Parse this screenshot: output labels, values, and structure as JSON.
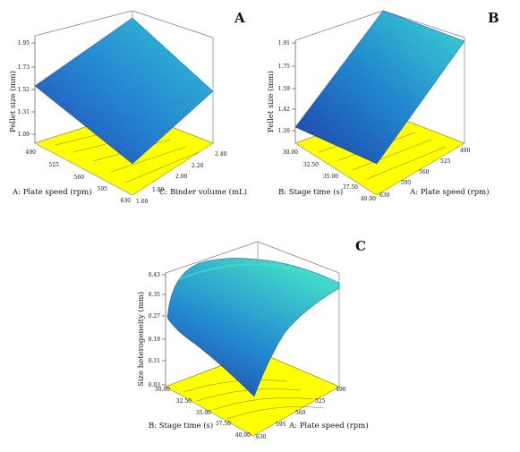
{
  "chart_data": [
    {
      "type": "surface3d",
      "panel_label": "A",
      "zlabel": "Pellet size (mm)",
      "xlabel": "A: Plate speed (rpm)",
      "ylabel": "C: Binder volume (mL)",
      "zticks": [
        "1.95",
        "1.73",
        "1.52",
        "1.31",
        "1.09"
      ],
      "xticks": [
        "490",
        "525",
        "560",
        "595",
        "630"
      ],
      "yticks": [
        "1.60",
        "1.80",
        "2.00",
        "2.20",
        "2.40"
      ],
      "zlim": [
        1.09,
        1.95
      ],
      "surface_corners": {
        "x490_y1.60": 1.56,
        "x630_y1.60": 0.95,
        "x630_y2.40": 1.52,
        "x490_y2.40": 1.95
      },
      "surface_color": "blue-cyan gradient",
      "base_color": "#ffff00"
    },
    {
      "type": "surface3d",
      "panel_label": "B",
      "zlabel": "Pellet size (mm)",
      "xlabel": "A: Plate speed (rpm)",
      "ylabel": "B: Stage time (s)",
      "zticks": [
        "1.91",
        "1.75",
        "1.59",
        "1.42",
        "1.26"
      ],
      "xticks": [
        "490",
        "525",
        "560",
        "595",
        "630"
      ],
      "yticks": [
        "30.00",
        "32.50",
        "35.00",
        "37.50",
        "40.00"
      ],
      "zlim": [
        1.26,
        1.91
      ],
      "surface_corners": {
        "x630_y30": 1.26,
        "x490_y30": 1.88,
        "x490_y40": 1.91,
        "x630_y40": 1.1
      },
      "surface_color": "blue-cyan gradient",
      "base_color": "#ffff00"
    },
    {
      "type": "surface3d",
      "panel_label": "C",
      "zlabel": "Size heterogeneity (mm)",
      "xlabel": "A: Plate speed (rpm)",
      "ylabel": "B: Stage time (s)",
      "zticks": [
        "0.43",
        "0.35",
        "0.27",
        "0.19",
        "0.11",
        "0.03"
      ],
      "xticks": [
        "490",
        "525",
        "560",
        "595",
        "630"
      ],
      "yticks": [
        "30.00",
        "32.50",
        "35.00",
        "37.50",
        "40.00"
      ],
      "zlim": [
        0.03,
        0.43
      ],
      "surface_corners": {
        "x630_y30": 0.28,
        "x490_y30": 0.42,
        "x490_y40": 0.4,
        "x630_y40": 0.02
      },
      "surface_peak": 0.43,
      "surface_color": "blue-cyan gradient",
      "base_color": "#ffff00"
    }
  ]
}
